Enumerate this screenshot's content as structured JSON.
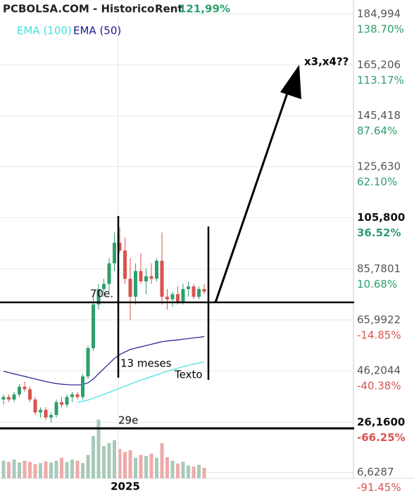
{
  "chart_data": {
    "type": "candlestick",
    "title": "PCBOLSA.COM - Historico",
    "return_label": "Rent",
    "return_value": "121,99%",
    "categories": [
      null,
      null,
      null,
      null,
      null,
      null,
      null,
      null,
      null,
      null,
      null,
      null,
      null,
      null,
      null,
      null,
      null,
      null,
      null,
      null,
      null,
      null,
      "2025",
      null,
      null,
      null,
      null,
      null,
      null,
      null,
      null,
      null,
      null,
      null,
      null,
      null,
      null,
      null,
      null
    ],
    "open": [
      35,
      36,
      35,
      37,
      40,
      39,
      35,
      30,
      31,
      28,
      29,
      34,
      33,
      36,
      37,
      36,
      44,
      55,
      72,
      78,
      80,
      88,
      96,
      93,
      82,
      75,
      85,
      81,
      83,
      82,
      89,
      75,
      74,
      76,
      73,
      78,
      79,
      75,
      78
    ],
    "high": [
      37,
      37,
      38,
      41,
      42,
      40,
      36,
      32,
      32,
      30,
      35,
      36,
      37,
      38,
      38,
      45,
      56,
      75,
      80,
      82,
      90,
      100,
      102,
      98,
      90,
      88,
      92,
      86,
      88,
      90,
      100,
      78,
      77,
      79,
      80,
      81,
      80,
      79,
      80
    ],
    "low": [
      33,
      34,
      34,
      36,
      38,
      34,
      29,
      28,
      27,
      26,
      28,
      32,
      32,
      34,
      35,
      35,
      43,
      54,
      70,
      75,
      77,
      85,
      92,
      80,
      66,
      72,
      80,
      76,
      80,
      81,
      72,
      70,
      71,
      72,
      72,
      75,
      74,
      74,
      76
    ],
    "close": [
      36,
      35,
      37,
      40,
      39,
      35,
      30,
      31,
      28,
      29,
      34,
      33,
      36,
      37,
      36,
      44,
      55,
      72,
      78,
      80,
      88,
      96,
      93,
      82,
      75,
      85,
      81,
      83,
      82,
      89,
      75,
      74,
      76,
      73,
      78,
      79,
      75,
      78,
      77
    ],
    "up_color": "#2e9e6e",
    "down_color": "#d9534f",
    "volume": [
      30,
      28,
      32,
      27,
      30,
      28,
      24,
      26,
      29,
      27,
      30,
      35,
      28,
      32,
      30,
      26,
      40,
      72,
      100,
      55,
      60,
      65,
      50,
      45,
      48,
      35,
      40,
      38,
      42,
      35,
      60,
      36,
      30,
      25,
      28,
      22,
      20,
      23,
      18
    ],
    "volume_lim": [
      0,
      120
    ],
    "volume_up_color": "#a9c9b9",
    "volume_down_color": "#eeaaaa",
    "series": [
      {
        "name": "EMA (100)",
        "color": "#40e0e0",
        "values": [
          null,
          null,
          null,
          null,
          null,
          null,
          null,
          null,
          null,
          null,
          null,
          null,
          null,
          null,
          34,
          34.3,
          34.8,
          35.5,
          36.3,
          37,
          37.8,
          38.6,
          39.4,
          40.2,
          41,
          41.8,
          42.5,
          43.2,
          43.9,
          44.6,
          45.3,
          46,
          46.6,
          47.2,
          47.8,
          48.3,
          48.8,
          49.2,
          49.6
        ]
      },
      {
        "name": "EMA (50)",
        "color": "#1a1a8c",
        "values": [
          46,
          45.5,
          45,
          44.5,
          44,
          43.5,
          43,
          42.5,
          42,
          41.6,
          41.2,
          41,
          40.8,
          40.7,
          40.7,
          40.8,
          41.5,
          43,
          45,
          47,
          49,
          51,
          52.5,
          53.5,
          54.5,
          55,
          55.5,
          56,
          56.5,
          57,
          57.5,
          57.8,
          58,
          58.2,
          58.5,
          58.7,
          59,
          59.2,
          59.5
        ]
      }
    ],
    "ylim": [
      4.35,
      190.47
    ],
    "yticks": [
      {
        "value": 184.994,
        "label": "184,994"
      },
      {
        "value": 165.206,
        "label": "165,206"
      },
      {
        "value": 145.418,
        "label": "145,418"
      },
      {
        "value": 125.63,
        "label": "125,630"
      },
      {
        "value": 105.8,
        "label": "105,800"
      },
      {
        "value": 85.7801,
        "label": "85,7801"
      },
      {
        "value": 65.9922,
        "label": "65,9922"
      },
      {
        "value": 46.2044,
        "label": "46,2044"
      },
      {
        "value": 26.16,
        "label": "26,1600"
      },
      {
        "value": 6.6287,
        "label": "6,6287"
      }
    ],
    "y2lim": [
      -94.39,
      145.77
    ],
    "y2ticks": [
      {
        "value": 138.7,
        "label": "138.70%"
      },
      {
        "value": 113.17,
        "label": "113.17%"
      },
      {
        "value": 87.64,
        "label": "87.64%"
      },
      {
        "value": 62.1,
        "label": "62.10%"
      },
      {
        "value": 36.52,
        "label": "36.52%"
      },
      {
        "value": 10.68,
        "label": "10.68%"
      },
      {
        "value": -14.85,
        "label": "-14.85%"
      },
      {
        "value": -40.38,
        "label": "-40.38%"
      },
      {
        "value": -66.25,
        "label": "-66.25%"
      },
      {
        "value": -91.45,
        "label": "-91.45%"
      }
    ],
    "highlight_ticks": [
      4,
      8
    ],
    "grid": true,
    "levels": [
      {
        "value": 72.8,
        "label": "70e."
      },
      {
        "value": 23.8,
        "label": "29e"
      }
    ],
    "notes": [
      "13 meses",
      "Texto",
      "x3,x4??"
    ]
  }
}
